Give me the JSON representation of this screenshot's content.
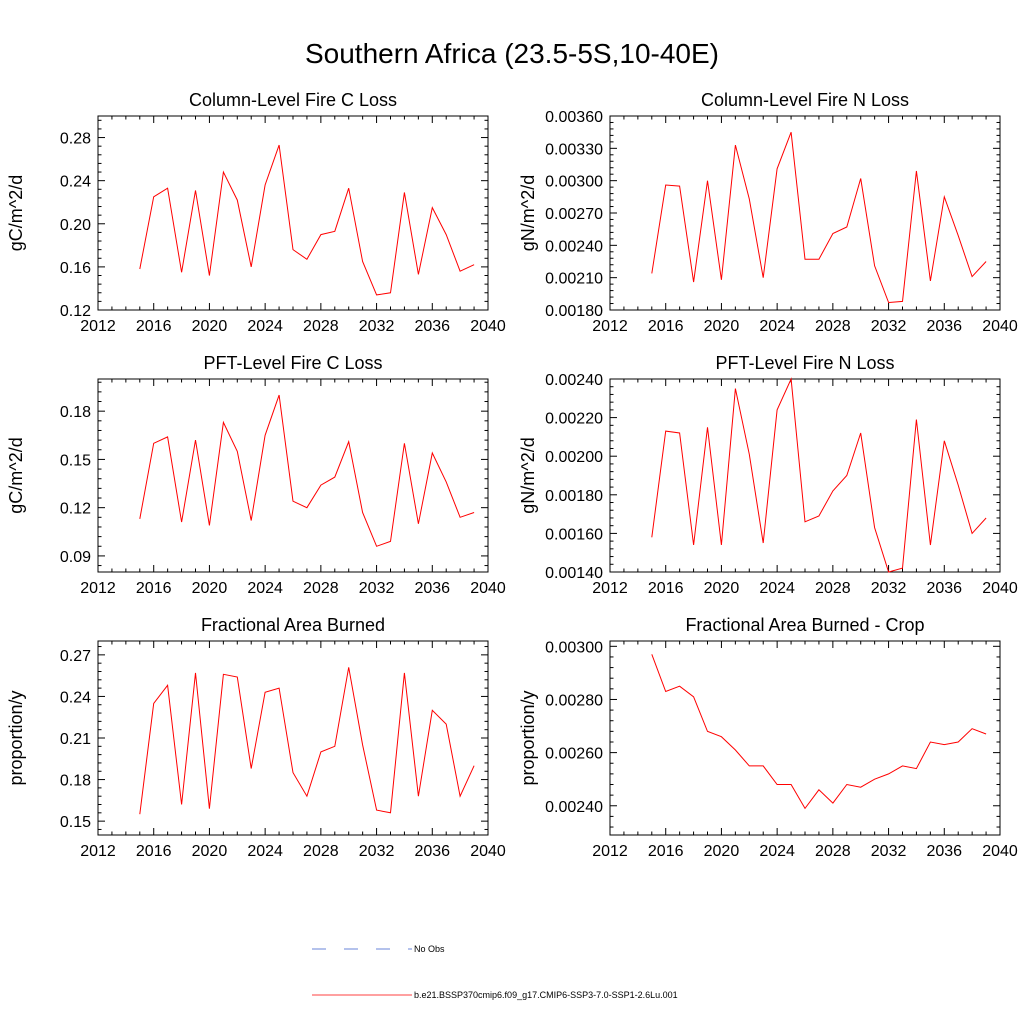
{
  "title": "Southern Africa (23.5-5S,10-40E)",
  "colors": {
    "model_line": "#ff0000",
    "obs_line": "#3a5fcd",
    "axis": "#000000"
  },
  "legend": {
    "obs_label": "No Obs",
    "model_label": "b.e21.BSSP370cmip6.f09_g17.CMIP6-SSP3-7.0-SSP1-2.6Lu.001"
  },
  "chart_data": [
    {
      "type": "line",
      "title": "Column-Level Fire C Loss",
      "ylabel": "gC/m^2/d",
      "xlim": [
        2012,
        2040
      ],
      "xticks": [
        2012,
        2016,
        2020,
        2024,
        2028,
        2032,
        2036,
        2040
      ],
      "ylim": [
        0.12,
        0.3
      ],
      "yticks": [
        "0.12",
        "0.16",
        "0.20",
        "0.24",
        "0.28"
      ],
      "x": [
        2015,
        2016,
        2017,
        2018,
        2019,
        2020,
        2021,
        2022,
        2023,
        2024,
        2025,
        2026,
        2027,
        2028,
        2029,
        2030,
        2031,
        2032,
        2033,
        2034,
        2035,
        2036,
        2037,
        2038,
        2039
      ],
      "series": [
        {
          "values": [
            0.158,
            0.225,
            0.233,
            0.155,
            0.231,
            0.152,
            0.248,
            0.222,
            0.16,
            0.236,
            0.273,
            0.176,
            0.167,
            0.19,
            0.193,
            0.233,
            0.165,
            0.134,
            0.136,
            0.229,
            0.153,
            0.215,
            0.19,
            0.156,
            0.162
          ]
        }
      ]
    },
    {
      "type": "line",
      "title": "Column-Level Fire N Loss",
      "ylabel": "gN/m^2/d",
      "xlim": [
        2012,
        2040
      ],
      "xticks": [
        2012,
        2016,
        2020,
        2024,
        2028,
        2032,
        2036,
        2040
      ],
      "ylim": [
        0.0018,
        0.0036
      ],
      "yticks": [
        "0.00180",
        "0.00210",
        "0.00240",
        "0.00270",
        "0.00300",
        "0.00330",
        "0.00360"
      ],
      "x": [
        2015,
        2016,
        2017,
        2018,
        2019,
        2020,
        2021,
        2022,
        2023,
        2024,
        2025,
        2026,
        2027,
        2028,
        2029,
        2030,
        2031,
        2032,
        2033,
        2034,
        2035,
        2036,
        2037,
        2038,
        2039
      ],
      "series": [
        {
          "values": [
            0.00214,
            0.00296,
            0.00295,
            0.00206,
            0.003,
            0.00208,
            0.00333,
            0.00283,
            0.0021,
            0.00311,
            0.00345,
            0.00227,
            0.00227,
            0.00251,
            0.00257,
            0.00302,
            0.00221,
            0.00187,
            0.00188,
            0.00309,
            0.00207,
            0.00285,
            0.00249,
            0.00211,
            0.00225
          ]
        }
      ]
    },
    {
      "type": "line",
      "title": "PFT-Level Fire C Loss",
      "ylabel": "gC/m^2/d",
      "xlim": [
        2012,
        2040
      ],
      "xticks": [
        2012,
        2016,
        2020,
        2024,
        2028,
        2032,
        2036,
        2040
      ],
      "ylim": [
        0.08,
        0.2
      ],
      "yticks": [
        "0.09",
        "0.12",
        "0.15",
        "0.18"
      ],
      "x": [
        2015,
        2016,
        2017,
        2018,
        2019,
        2020,
        2021,
        2022,
        2023,
        2024,
        2025,
        2026,
        2027,
        2028,
        2029,
        2030,
        2031,
        2032,
        2033,
        2034,
        2035,
        2036,
        2037,
        2038,
        2039
      ],
      "series": [
        {
          "values": [
            0.113,
            0.16,
            0.164,
            0.111,
            0.162,
            0.109,
            0.173,
            0.155,
            0.112,
            0.165,
            0.19,
            0.124,
            0.12,
            0.134,
            0.139,
            0.161,
            0.117,
            0.096,
            0.099,
            0.16,
            0.11,
            0.154,
            0.136,
            0.114,
            0.117
          ]
        }
      ]
    },
    {
      "type": "line",
      "title": "PFT-Level Fire N Loss",
      "ylabel": "gN/m^2/d",
      "xlim": [
        2012,
        2040
      ],
      "xticks": [
        2012,
        2016,
        2020,
        2024,
        2028,
        2032,
        2036,
        2040
      ],
      "ylim": [
        0.0014,
        0.0024
      ],
      "yticks": [
        "0.00140",
        "0.00160",
        "0.00180",
        "0.00200",
        "0.00220",
        "0.00240"
      ],
      "x": [
        2015,
        2016,
        2017,
        2018,
        2019,
        2020,
        2021,
        2022,
        2023,
        2024,
        2025,
        2026,
        2027,
        2028,
        2029,
        2030,
        2031,
        2032,
        2033,
        2034,
        2035,
        2036,
        2037,
        2038,
        2039
      ],
      "series": [
        {
          "values": [
            0.00158,
            0.00213,
            0.00212,
            0.00154,
            0.00215,
            0.00154,
            0.00235,
            0.00201,
            0.00155,
            0.00224,
            0.0024,
            0.00166,
            0.00169,
            0.00182,
            0.0019,
            0.00212,
            0.00163,
            0.0014,
            0.00142,
            0.00219,
            0.00154,
            0.00208,
            0.00185,
            0.0016,
            0.00168
          ]
        }
      ]
    },
    {
      "type": "line",
      "title": "Fractional Area Burned",
      "ylabel": "proportion/y",
      "xlim": [
        2012,
        2040
      ],
      "xticks": [
        2012,
        2016,
        2020,
        2024,
        2028,
        2032,
        2036,
        2040
      ],
      "ylim": [
        0.14,
        0.28
      ],
      "yticks": [
        "0.15",
        "0.18",
        "0.21",
        "0.24",
        "0.27"
      ],
      "x": [
        2015,
        2016,
        2017,
        2018,
        2019,
        2020,
        2021,
        2022,
        2023,
        2024,
        2025,
        2026,
        2027,
        2028,
        2029,
        2030,
        2031,
        2032,
        2033,
        2034,
        2035,
        2036,
        2037,
        2038,
        2039
      ],
      "series": [
        {
          "values": [
            0.155,
            0.235,
            0.248,
            0.162,
            0.257,
            0.159,
            0.256,
            0.254,
            0.188,
            0.243,
            0.246,
            0.185,
            0.168,
            0.2,
            0.204,
            0.261,
            0.205,
            0.158,
            0.156,
            0.257,
            0.168,
            0.23,
            0.22,
            0.168,
            0.19
          ]
        }
      ]
    },
    {
      "type": "line",
      "title": "Fractional Area Burned - Crop",
      "ylabel": "proportion/y",
      "xlim": [
        2012,
        2040
      ],
      "xticks": [
        2012,
        2016,
        2020,
        2024,
        2028,
        2032,
        2036,
        2040
      ],
      "ylim": [
        0.00229,
        0.00302
      ],
      "yticks": [
        "0.00240",
        "0.00260",
        "0.00280",
        "0.00300"
      ],
      "x": [
        2015,
        2016,
        2017,
        2018,
        2019,
        2020,
        2021,
        2022,
        2023,
        2024,
        2025,
        2026,
        2027,
        2028,
        2029,
        2030,
        2031,
        2032,
        2033,
        2034,
        2035,
        2036,
        2037,
        2038,
        2039
      ],
      "series": [
        {
          "values": [
            0.00297,
            0.00283,
            0.00285,
            0.00281,
            0.00268,
            0.00266,
            0.00261,
            0.00255,
            0.00255,
            0.00248,
            0.00248,
            0.00239,
            0.00246,
            0.00241,
            0.00248,
            0.00247,
            0.0025,
            0.00252,
            0.00255,
            0.00254,
            0.00264,
            0.00263,
            0.00264,
            0.00269,
            0.00267
          ]
        }
      ]
    }
  ]
}
